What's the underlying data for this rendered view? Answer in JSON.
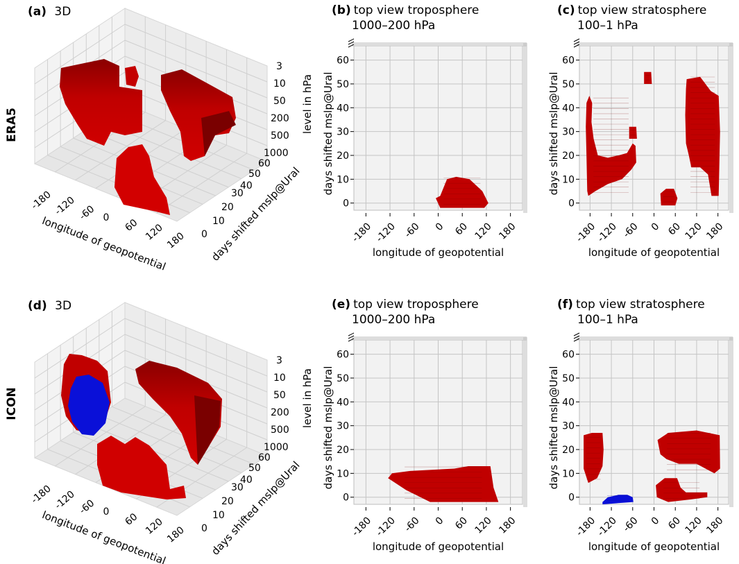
{
  "colors": {
    "era5": "#c00000",
    "era5_dark": "#7a0000",
    "icon_blue": "#0a10d8",
    "pane": "#f2f2f2",
    "grid": "#c4c4c4"
  },
  "rows": [
    {
      "label": "ERA5"
    },
    {
      "label": "ICON"
    }
  ],
  "chart_data": [
    {
      "type": "voxel-3d",
      "panel_label": "(a)",
      "title": "3D",
      "xlabel": "longitude of geopotential",
      "ylabel": "days shifted mslp@Ural",
      "zlabel": "level in hPa",
      "xticks": [
        "-180",
        "-120",
        "-60",
        "0",
        "60",
        "120",
        "180"
      ],
      "yticks": [
        "0",
        "10",
        "20",
        "30",
        "40",
        "50",
        "60"
      ],
      "zticks": [
        "3",
        "10",
        "50",
        "200",
        "500",
        "1000"
      ]
    },
    {
      "type": "voxel-topview",
      "panel_label": "(b)",
      "title": "top view troposphere",
      "subtitle": "1000–200 hPa",
      "xlabel": "longitude of geopotential",
      "ylabel": "days shifted mslp@Ural",
      "xticks": [
        -180,
        -120,
        -60,
        0,
        60,
        120,
        180
      ],
      "yticks": [
        0,
        10,
        20,
        30,
        40,
        50,
        60
      ],
      "xlim": [
        -210,
        210
      ],
      "ylim": [
        -3,
        66
      ],
      "regions": [
        {
          "color": "red",
          "outline": [
            [
              5,
              3
            ],
            [
              22,
              10
            ],
            [
              45,
              11
            ],
            [
              78,
              10
            ],
            [
              110,
              5
            ],
            [
              125,
              0
            ],
            [
              115,
              -2
            ],
            [
              5,
              -2
            ],
            [
              -6,
              2
            ]
          ]
        }
      ]
    },
    {
      "type": "voxel-topview",
      "panel_label": "(c)",
      "title": "top view stratosphere",
      "subtitle": "100–1 hPa",
      "xlabel": "longitude of geopotential",
      "ylabel": "days shifted mslp@Ural",
      "xticks": [
        -180,
        -120,
        -60,
        0,
        60,
        120,
        180
      ],
      "yticks": [
        0,
        10,
        20,
        30,
        40,
        50,
        60
      ],
      "xlim": [
        -210,
        210
      ],
      "ylim": [
        -3,
        66
      ],
      "regions": [
        {
          "color": "red",
          "outline": [
            [
              -188,
              5
            ],
            [
              -190,
              20
            ],
            [
              -192,
              32
            ],
            [
              -190,
              42
            ],
            [
              -182,
              45
            ],
            [
              -174,
              42
            ],
            [
              -176,
              34
            ],
            [
              -170,
              27
            ],
            [
              -158,
              20
            ],
            [
              -130,
              19
            ],
            [
              -100,
              20
            ],
            [
              -76,
              21
            ],
            [
              -60,
              25
            ],
            [
              -52,
              24
            ],
            [
              -50,
              17
            ],
            [
              -64,
              14
            ],
            [
              -90,
              10
            ],
            [
              -130,
              8
            ],
            [
              -165,
              5
            ],
            [
              -185,
              3
            ]
          ]
        },
        {
          "color": "red",
          "outline": [
            [
              -28,
              55
            ],
            [
              -8,
              55
            ],
            [
              -6,
              50
            ],
            [
              -28,
              50
            ]
          ]
        },
        {
          "color": "red",
          "outline": [
            [
              -70,
              32
            ],
            [
              -50,
              32
            ],
            [
              -48,
              27
            ],
            [
              -70,
              27
            ]
          ]
        },
        {
          "color": "red",
          "outline": [
            [
              92,
              52
            ],
            [
              130,
              53
            ],
            [
              160,
              47
            ],
            [
              182,
              45
            ],
            [
              186,
              30
            ],
            [
              182,
              3
            ],
            [
              162,
              3
            ],
            [
              152,
              12
            ],
            [
              130,
              15
            ],
            [
              105,
              15
            ],
            [
              98,
              20
            ],
            [
              90,
              25
            ],
            [
              88,
              37
            ],
            [
              90,
              48
            ]
          ]
        },
        {
          "color": "red",
          "outline": [
            [
              18,
              4
            ],
            [
              34,
              6
            ],
            [
              56,
              6
            ],
            [
              66,
              2
            ],
            [
              60,
              -1
            ],
            [
              20,
              -1
            ]
          ]
        }
      ]
    },
    {
      "type": "voxel-3d",
      "panel_label": "(d)",
      "title": "3D",
      "xlabel": "longitude of geopotential",
      "ylabel": "days shifted mslp@Ural",
      "zlabel": "level in hPa",
      "xticks": [
        "-180",
        "-120",
        "-60",
        "0",
        "60",
        "120",
        "180"
      ],
      "yticks": [
        "0",
        "10",
        "20",
        "30",
        "40",
        "50",
        "60"
      ],
      "zticks": [
        "3",
        "10",
        "50",
        "200",
        "500",
        "1000"
      ]
    },
    {
      "type": "voxel-topview",
      "panel_label": "(e)",
      "title": "top view troposphere",
      "subtitle": "1000–200 hPa",
      "xlabel": "longitude of geopotential",
      "ylabel": "days shifted mslp@Ural",
      "xticks": [
        -180,
        -120,
        -60,
        0,
        60,
        120,
        180
      ],
      "yticks": [
        0,
        10,
        20,
        30,
        40,
        50,
        60
      ],
      "xlim": [
        -210,
        210
      ],
      "ylim": [
        -3,
        66
      ],
      "regions": [
        {
          "color": "red",
          "outline": [
            [
              -125,
              8
            ],
            [
              -115,
              10
            ],
            [
              -70,
              11
            ],
            [
              40,
              12
            ],
            [
              75,
              13
            ],
            [
              130,
              13
            ],
            [
              138,
              4
            ],
            [
              150,
              -2
            ],
            [
              -20,
              -2
            ],
            [
              -80,
              3
            ]
          ]
        }
      ]
    },
    {
      "type": "voxel-topview",
      "panel_label": "(f)",
      "title": "top view stratosphere",
      "subtitle": "100–1 hPa",
      "xlabel": "longitude of geopotential",
      "ylabel": "days shifted mslp@Ural",
      "xticks": [
        -180,
        -120,
        -60,
        0,
        60,
        120,
        180
      ],
      "yticks": [
        0,
        10,
        20,
        30,
        40,
        50,
        60
      ],
      "xlim": [
        -210,
        210
      ],
      "ylim": [
        -3,
        66
      ],
      "regions": [
        {
          "color": "red",
          "outline": [
            [
              -198,
              12
            ],
            [
              -198,
              26
            ],
            [
              -175,
              27
            ],
            [
              -145,
              27
            ],
            [
              -142,
              20
            ],
            [
              -145,
              13
            ],
            [
              -160,
              8
            ],
            [
              -185,
              6
            ]
          ]
        },
        {
          "color": "red",
          "outline": [
            [
              10,
              24
            ],
            [
              40,
              27
            ],
            [
              120,
              28
            ],
            [
              185,
              26
            ],
            [
              186,
              12
            ],
            [
              170,
              10
            ],
            [
              120,
              14
            ],
            [
              70,
              14
            ],
            [
              35,
              16
            ],
            [
              18,
              18
            ]
          ]
        },
        {
          "color": "red",
          "outline": [
            [
              5,
              5
            ],
            [
              30,
              8
            ],
            [
              65,
              8
            ],
            [
              75,
              4
            ],
            [
              90,
              2
            ],
            [
              150,
              2
            ],
            [
              150,
              0
            ],
            [
              100,
              -1
            ],
            [
              40,
              -2
            ],
            [
              8,
              0
            ]
          ]
        },
        {
          "color": "blue",
          "outline": [
            [
              -145,
              -2
            ],
            [
              -130,
              0
            ],
            [
              -100,
              1
            ],
            [
              -75,
              1
            ],
            [
              -60,
              0
            ],
            [
              -58,
              -2
            ],
            [
              -145,
              -3
            ]
          ]
        }
      ]
    }
  ]
}
